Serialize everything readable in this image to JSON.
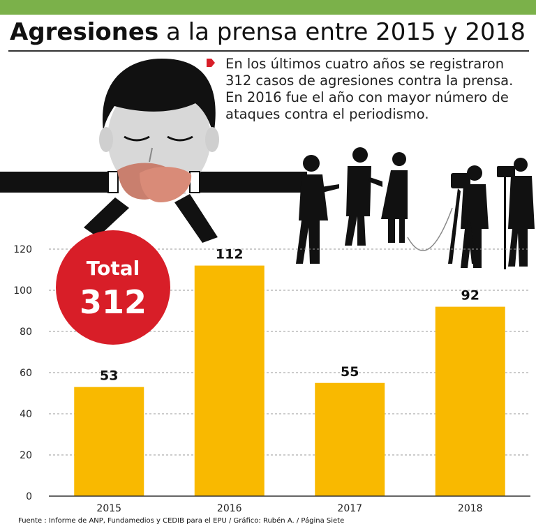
{
  "header": {
    "title_bold": "Agresiones",
    "title_rest": " a la prensa entre 2015 y 2018"
  },
  "note": {
    "text": "En los últimos cuatro años se registraron 312 casos de agresiones contra la prensa. En 2016 fue el año con mayor número de ataques contra el periodismo.",
    "marker_color": "#d81e28"
  },
  "badge": {
    "label": "Total",
    "value": "312",
    "color": "#d81e28"
  },
  "illustration": {
    "icon": "gagged-journalist-and-press-silhouettes"
  },
  "chart_data": {
    "type": "bar",
    "title": "",
    "xlabel": "",
    "ylabel": "",
    "categories": [
      "2015",
      "2016",
      "2017",
      "2018"
    ],
    "values": [
      53,
      112,
      55,
      92
    ],
    "data_labels": [
      "53",
      "112",
      "55",
      "92"
    ],
    "ylim": [
      0,
      120
    ],
    "yticks": [
      0,
      20,
      40,
      60,
      80,
      100,
      120
    ],
    "grid": true,
    "bar_color": "#f9b900",
    "accent_color": "#7bb14a"
  },
  "footer": {
    "source": "Fuente : Informe de ANP, Fundamedios y CEDIB para el EPU / Gráfico: Rubén A. / Página Siete"
  }
}
